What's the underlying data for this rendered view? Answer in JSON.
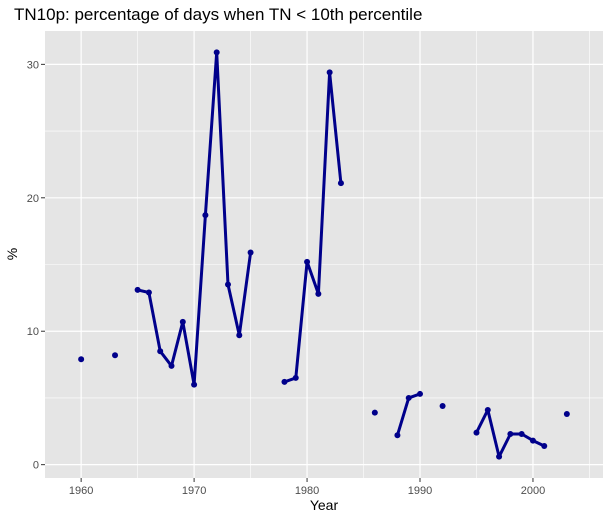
{
  "chart_data": {
    "type": "line",
    "title": "TN10p: percentage of days when TN < 10th percentile",
    "xlabel": "Year",
    "ylabel": "%",
    "xlim": [
      1956.8,
      2006.2
    ],
    "ylim": [
      -1.0,
      32.5
    ],
    "x_ticks": [
      1960,
      1970,
      1980,
      1990,
      2000
    ],
    "x_minor_ticks": [
      1965,
      1975,
      1985,
      1995,
      2005
    ],
    "y_ticks": [
      0,
      10,
      20,
      30
    ],
    "y_minor_ticks": [
      5,
      15,
      25
    ],
    "grid": true,
    "legend": "none",
    "colors": {
      "series": "#00008b",
      "panel": "#e5e5e5",
      "grid": "#ffffff",
      "tick": "#333333"
    },
    "series": [
      {
        "x": [
          1960,
          1963,
          1965,
          1966,
          1967,
          1968,
          1969,
          1970,
          1971,
          1972,
          1973,
          1974,
          1975,
          1978,
          1979,
          1980,
          1981,
          1982,
          1983,
          1986,
          1988,
          1989,
          1990,
          1992,
          1995,
          1996,
          1997,
          1998,
          1999,
          2000,
          2001,
          2003
        ],
        "y": [
          7.9,
          8.2,
          13.1,
          12.9,
          8.5,
          7.4,
          10.7,
          6.0,
          18.7,
          30.9,
          13.5,
          9.7,
          15.9,
          6.2,
          6.5,
          15.2,
          12.8,
          29.4,
          21.1,
          3.9,
          2.2,
          5.0,
          5.3,
          4.4,
          2.4,
          4.1,
          0.6,
          2.3,
          2.3,
          1.8,
          1.4,
          3.8
        ]
      }
    ]
  }
}
